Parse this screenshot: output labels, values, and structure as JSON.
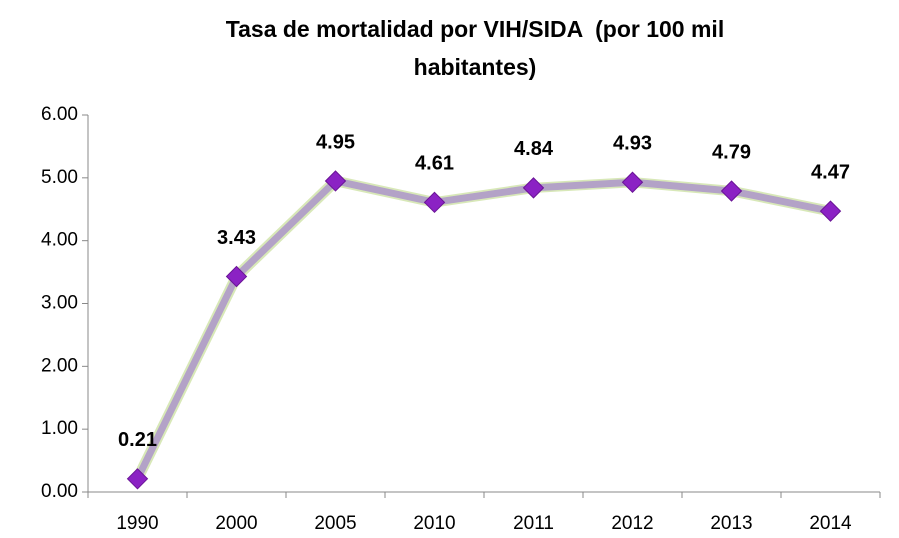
{
  "chart_data": {
    "type": "line",
    "title": "Tasa de mortalidad por VIH/SIDA  (por 100 mil habitantes)",
    "categories": [
      "1990",
      "2000",
      "2005",
      "2010",
      "2011",
      "2012",
      "2013",
      "2014"
    ],
    "values": [
      0.21,
      3.43,
      4.95,
      4.61,
      4.84,
      4.93,
      4.79,
      4.47
    ],
    "color": "#b3a2c7",
    "marker_color": "#8b22c4",
    "ylim": [
      0,
      6
    ],
    "yticks": [
      {
        "value": 0,
        "label": "0.00"
      },
      {
        "value": 1,
        "label": "1.00"
      },
      {
        "value": 2,
        "label": "2.00"
      },
      {
        "value": 3,
        "label": "3.00"
      },
      {
        "value": 4,
        "label": "4.00"
      },
      {
        "value": 5,
        "label": "5.00"
      },
      {
        "value": 6,
        "label": "6.00"
      }
    ],
    "grid": false
  }
}
